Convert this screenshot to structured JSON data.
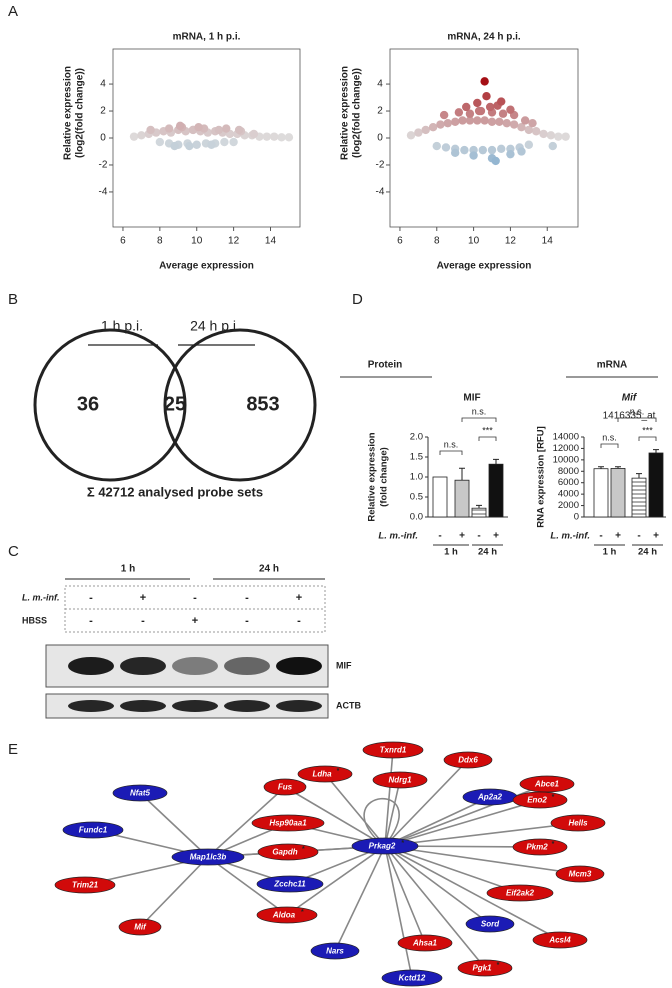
{
  "panel_labels": [
    "A",
    "B",
    "C",
    "D",
    "E"
  ],
  "chart_data": [
    {
      "type": "scatter",
      "title": "mRNA, 1 h p.i.",
      "xlabel": "Average expression",
      "ylabel": [
        "Relative expression",
        "(log2(fold change))"
      ],
      "x": [
        6.6,
        7.0,
        7.4,
        7.8,
        8.2,
        8.6,
        9.0,
        9.4,
        9.8,
        10.2,
        10.6,
        11.0,
        11.4,
        11.8,
        12.2,
        12.6,
        13.0,
        13.4,
        13.8,
        14.2,
        14.6,
        15.0,
        8.0,
        8.5,
        9.0,
        9.5,
        10.0,
        10.5,
        11.0,
        11.5,
        12.0,
        7.5,
        8.5,
        9.2,
        9.8,
        10.4,
        11.2,
        12.3,
        9.1,
        10.1,
        11.6,
        12.4,
        13.1,
        8.8,
        9.6,
        10.8
      ],
      "y": [
        0.1,
        0.2,
        0.3,
        0.4,
        0.5,
        0.4,
        0.6,
        0.5,
        0.6,
        0.5,
        0.4,
        0.5,
        0.4,
        0.3,
        0.3,
        0.2,
        0.2,
        0.1,
        0.1,
        0.1,
        0.05,
        0.05,
        -0.3,
        -0.4,
        -0.5,
        -0.4,
        -0.5,
        -0.4,
        -0.4,
        -0.3,
        -0.3,
        0.6,
        0.7,
        0.8,
        0.6,
        0.7,
        0.6,
        0.6,
        0.9,
        0.8,
        0.7,
        0.5,
        0.3,
        -0.6,
        -0.6,
        -0.5
      ],
      "xlim": [
        5.46,
        15.6
      ],
      "ylim": [
        -6.6,
        6.6
      ],
      "xticks": [
        6,
        8,
        10,
        12,
        14
      ],
      "yticks": [
        -4,
        -2,
        0,
        2,
        4
      ],
      "colors": {
        "low": "#2f7fbf",
        "mid": "#dedede",
        "high": "#a50f15"
      }
    },
    {
      "type": "scatter",
      "title": "mRNA, 24 h p.i.",
      "xlabel": "Average expression",
      "ylabel": [
        "Relative expression",
        "(log2(fold change))"
      ],
      "x": [
        6.6,
        7.0,
        7.4,
        7.8,
        8.2,
        8.6,
        9.0,
        9.4,
        9.8,
        10.2,
        10.6,
        11.0,
        11.4,
        11.8,
        12.2,
        12.6,
        13.0,
        13.4,
        13.8,
        14.2,
        14.6,
        15.0,
        8.0,
        8.5,
        9.0,
        9.5,
        10.0,
        10.5,
        11.0,
        11.5,
        12.0,
        12.5,
        13.0,
        14.3,
        8.4,
        9.2,
        9.8,
        10.4,
        11.0,
        11.6,
        12.2,
        12.8,
        9.6,
        10.2,
        10.9,
        11.3,
        12.0,
        10.7,
        11.5,
        10.6,
        9.0,
        10.0,
        11.0,
        12.0,
        11.2,
        12.6,
        10.3,
        13.2
      ],
      "y": [
        0.2,
        0.4,
        0.6,
        0.8,
        1.0,
        1.1,
        1.2,
        1.3,
        1.3,
        1.3,
        1.3,
        1.2,
        1.2,
        1.1,
        1.0,
        0.8,
        0.6,
        0.5,
        0.3,
        0.2,
        0.1,
        0.1,
        -0.6,
        -0.7,
        -0.8,
        -0.9,
        -0.9,
        -0.9,
        -0.9,
        -0.8,
        -0.8,
        -0.7,
        -0.5,
        -0.6,
        1.7,
        1.9,
        1.8,
        2.0,
        1.9,
        1.8,
        1.7,
        1.3,
        2.3,
        2.6,
        2.3,
        2.4,
        2.1,
        3.1,
        2.7,
        4.2,
        -1.1,
        -1.3,
        -1.5,
        -1.2,
        -1.7,
        -1.0,
        2.0,
        1.1
      ],
      "xlim": [
        5.46,
        15.67
      ],
      "ylim": [
        -6.6,
        6.6
      ],
      "xticks": [
        6,
        8,
        10,
        12,
        14
      ],
      "yticks": [
        -4,
        -2,
        0,
        2,
        4
      ],
      "colors": {
        "low": "#2f7fbf",
        "mid": "#dedede",
        "high": "#a50f15"
      }
    },
    {
      "type": "bar",
      "header": "Protein",
      "title": "MIF",
      "ylabel": [
        "Relative expression",
        "(fold change)"
      ],
      "categories": [
        "-",
        "+",
        "-",
        "+"
      ],
      "groups": [
        "1 h",
        "24 h"
      ],
      "row_label": "L. m.-inf.",
      "values": [
        1.0,
        0.92,
        0.22,
        1.32
      ],
      "errors": [
        null,
        0.3,
        0.07,
        0.12
      ],
      "fills": [
        "#ffffff",
        "#c8c8c8",
        "#ffffff",
        "#111111"
      ],
      "hatch": [
        false,
        false,
        true,
        false
      ],
      "ylim": [
        0,
        2
      ],
      "yticks": [
        {
          "value": 0,
          "label": "0.0"
        },
        0.5,
        {
          "value": 1,
          "label": "1.0"
        },
        1.5,
        {
          "value": 2,
          "label": "2.0"
        }
      ],
      "annotations": [
        "n.s.",
        "n.s.",
        "***"
      ]
    },
    {
      "type": "bar",
      "header": "mRNA",
      "title": "Mif",
      "subtitle": "1416335_at",
      "ylabel": "RNA expression [RFU]",
      "categories": [
        "-",
        "+",
        "-",
        "+"
      ],
      "groups": [
        "1 h",
        "24 h"
      ],
      "row_label": "L. m.-inf.",
      "values": [
        8450,
        8500,
        6800,
        11200
      ],
      "errors": [
        350,
        300,
        800,
        600
      ],
      "fills": [
        "#ffffff",
        "#c8c8c8",
        "#ffffff",
        "#111111"
      ],
      "hatch": [
        false,
        false,
        true,
        false
      ],
      "ylim": [
        0,
        14000
      ],
      "yticks": [
        0,
        2000,
        4000,
        6000,
        8000,
        10000,
        12000,
        14000
      ],
      "annotations": [
        "n.s.",
        "n.s.",
        "***"
      ]
    }
  ],
  "venn": {
    "left_label": "1 h p.i.",
    "right_label": "24 h p.i.",
    "left_only": 36,
    "overlap": 25,
    "right_only": 853,
    "total": "Σ 42712 analysed probe sets"
  },
  "blot": {
    "time_labels": [
      "1 h",
      "24 h"
    ],
    "rows": [
      {
        "label": "L. m.-inf.",
        "cells": [
          "-",
          "+",
          "-",
          "-",
          "+"
        ]
      },
      {
        "label": "HBSS",
        "cells": [
          "-",
          "-",
          "+",
          "-",
          "-"
        ]
      }
    ],
    "bands": [
      "MIF",
      "ACTB"
    ]
  },
  "network": {
    "nodes": [
      {
        "label": "Txnrd1",
        "color": "#d10a0a"
      },
      {
        "label": "Ldha",
        "sup": "*",
        "color": "#d10a0a"
      },
      {
        "label": "Ddx6",
        "color": "#d10a0a"
      },
      {
        "label": "Ndrg1",
        "color": "#d10a0a"
      },
      {
        "label": "Abce1",
        "color": "#d10a0a"
      },
      {
        "label": "Ap2a2",
        "color": "#1b1bb5"
      },
      {
        "label": "Nfat5",
        "color": "#1b1bb5"
      },
      {
        "label": "Fus",
        "color": "#d10a0a"
      },
      {
        "label": "Eno2",
        "sup": "*",
        "color": "#d10a0a"
      },
      {
        "label": "Hells",
        "color": "#d10a0a"
      },
      {
        "label": "Hsp90aa1",
        "color": "#d10a0a"
      },
      {
        "label": "Fundc1",
        "color": "#1b1bb5"
      },
      {
        "label": "Prkag2",
        "sup": "*",
        "color": "#1b1bb5"
      },
      {
        "label": "Map1lc3b",
        "color": "#1b1bb5"
      },
      {
        "label": "Gapdh",
        "sup": "*",
        "color": "#d10a0a"
      },
      {
        "label": "Pkm2",
        "sup": "*",
        "color": "#d10a0a"
      },
      {
        "label": "Zcchc11",
        "color": "#1b1bb5"
      },
      {
        "label": "Mcm3",
        "color": "#d10a0a"
      },
      {
        "label": "Trim21",
        "color": "#d10a0a"
      },
      {
        "label": "Eif2ak2",
        "color": "#d10a0a"
      },
      {
        "label": "Aldoa",
        "sup": "*",
        "color": "#d10a0a"
      },
      {
        "label": "Sord",
        "color": "#1b1bb5"
      },
      {
        "label": "Mif",
        "color": "#d10a0a"
      },
      {
        "label": "Acsl4",
        "color": "#d10a0a"
      },
      {
        "label": "Ahsa1",
        "color": "#d10a0a"
      },
      {
        "label": "Nars",
        "color": "#1b1bb5"
      },
      {
        "label": "Pgk1",
        "sup": "*",
        "color": "#d10a0a"
      },
      {
        "label": "Kctd12",
        "color": "#1b1bb5"
      }
    ]
  }
}
